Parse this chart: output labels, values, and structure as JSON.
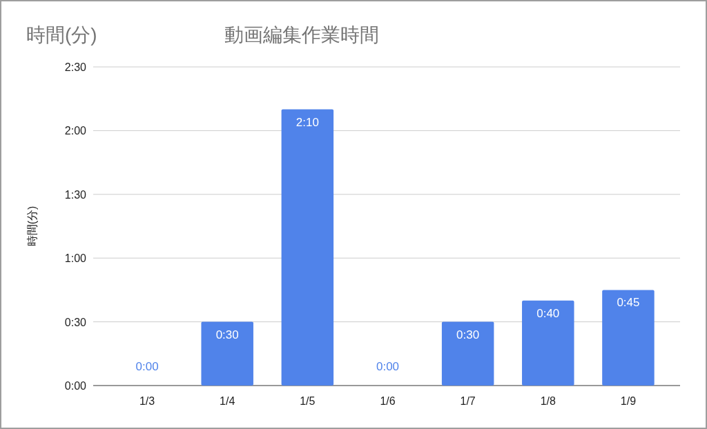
{
  "chart_data": {
    "type": "bar",
    "title": "動画編集作業時間",
    "ylabel": "時間(分)",
    "annotations": [
      "時間(分)"
    ],
    "categories": [
      "1/3",
      "1/4",
      "1/5",
      "1/6",
      "1/7",
      "1/8",
      "1/9"
    ],
    "values": [
      0,
      30,
      130,
      0,
      30,
      40,
      45
    ],
    "value_labels": [
      "0:00",
      "0:30",
      "2:10",
      "0:00",
      "0:30",
      "0:40",
      "0:45"
    ],
    "color": "#5083ea",
    "ylim": [
      0,
      150
    ],
    "yticks": [
      {
        "value": 0,
        "label": "0:00"
      },
      {
        "value": 30,
        "label": "0:30"
      },
      {
        "value": 60,
        "label": "1:00"
      },
      {
        "value": 90,
        "label": "1:30"
      },
      {
        "value": 120,
        "label": "2:00"
      },
      {
        "value": 150,
        "label": "2:30"
      }
    ],
    "grid": "y"
  }
}
